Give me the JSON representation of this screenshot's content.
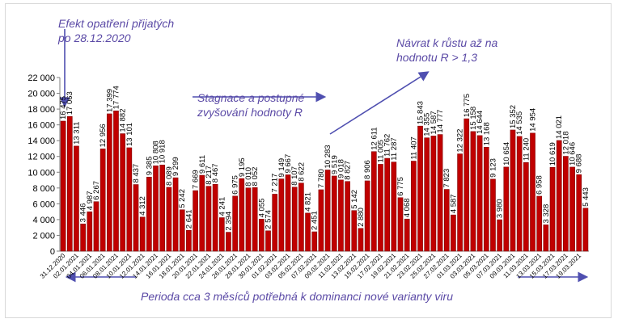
{
  "chart_data": {
    "type": "bar",
    "categories": [
      "31.12.2020",
      "01.01.2021",
      "02.01.2021",
      "03.01.2021",
      "04.01.2021",
      "05.01.2021",
      "06.01.2021",
      "07.01.2021",
      "08.01.2021",
      "09.01.2021",
      "10.01.2021",
      "11.01.2021",
      "12.01.2021",
      "13.01.2021",
      "14.01.2021",
      "15.01.2021",
      "16.01.2021",
      "17.01.2021",
      "18.01.2021",
      "19.01.2021",
      "20.01.2021",
      "21.01.2021",
      "22.01.2021",
      "23.01.2021",
      "24.01.2021",
      "25.01.2021",
      "26.01.2021",
      "27.01.2021",
      "28.01.2021",
      "29.01.2021",
      "30.01.2021",
      "31.01.2021",
      "01.02.2021",
      "02.02.2021",
      "03.02.2021",
      "04.02.2021",
      "05.02.2021",
      "06.02.2021",
      "07.02.2021",
      "08.02.2021",
      "09.02.2021",
      "10.02.2021",
      "11.02.2021",
      "12.02.2021",
      "13.02.2021",
      "14.02.2021",
      "15.02.2021",
      "16.02.2021",
      "17.02.2021",
      "18.02.2021",
      "19.02.2021",
      "20.02.2021",
      "21.02.2021",
      "22.02.2021",
      "23.02.2021",
      "24.02.2021",
      "25.02.2021",
      "26.02.2021",
      "27.02.2021",
      "28.02.2021",
      "01.03.2021",
      "02.03.2021",
      "03.03.2021",
      "04.03.2021",
      "05.03.2021",
      "06.03.2021",
      "07.03.2021",
      "08.03.2021",
      "09.03.2021",
      "10.03.2021",
      "11.03.2021",
      "12.03.2021",
      "13.03.2021",
      "14.03.2021",
      "15.03.2021",
      "16.03.2021",
      "17.03.2021",
      "18.03.2021",
      "19.03.2021",
      "20.03.2021"
    ],
    "xtick_labels": [
      "31.12.2020",
      "02.01.2021",
      "04.01.2021",
      "06.01.2021",
      "08.01.2021",
      "10.01.2021",
      "12.01.2021",
      "14.01.2021",
      "16.01.2021",
      "18.01.2021",
      "20.01.2021",
      "22.01.2021",
      "24.01.2021",
      "26.01.2021",
      "28.01.2021",
      "30.01.2021",
      "01.02.2021",
      "03.02.2021",
      "05.02.2021",
      "07.02.2021",
      "09.02.2021",
      "11.02.2021",
      "13.02.2021",
      "15.02.2021",
      "17.02.2021",
      "19.02.2021",
      "21.02.2021",
      "23.02.2021",
      "25.02.2021",
      "27.02.2021",
      "01.03.2021",
      "03.03.2021",
      "05.03.2021",
      "07.03.2021",
      "09.03.2021",
      "11.03.2021",
      "13.03.2021",
      "15.03.2021",
      "17.03.2021",
      "19.03.2021"
    ],
    "values": [
      16475,
      17063,
      13311,
      3446,
      4987,
      6267,
      12956,
      17399,
      17774,
      14882,
      13101,
      8437,
      4312,
      9385,
      10808,
      10918,
      8089,
      9299,
      5242,
      2641,
      7669,
      9611,
      8217,
      8467,
      4241,
      2394,
      6975,
      9195,
      8010,
      8052,
      4055,
      2574,
      7217,
      9149,
      9667,
      8107,
      8622,
      4821,
      2451,
      7780,
      10283,
      9519,
      9018,
      8827,
      5142,
      2880,
      8906,
      12611,
      11005,
      11762,
      11287,
      6775,
      4068,
      11407,
      15843,
      14355,
      14587,
      14777,
      7823,
      4587,
      12322,
      16775,
      15158,
      14644,
      13168,
      9123,
      3980,
      10654,
      15352,
      14535,
      11240,
      14954,
      6958,
      3328,
      10619,
      14021,
      12018,
      10646,
      9688,
      5443
    ],
    "value_labels": [
      "16 475",
      "17 063",
      "13 311",
      "3 446",
      "4 987",
      "6 267",
      "12 956",
      "17 399",
      "17 774",
      "14 882",
      "13 101",
      "8 437",
      "4 312",
      "9 385",
      "10 808",
      "10 918",
      "8 089",
      "9 299",
      "5 242",
      "2 641",
      "7 669",
      "9 611",
      "8 217",
      "8 467",
      "4 241",
      "2 394",
      "6 975",
      "9 195",
      "8 010",
      "8 052",
      "4 055",
      "2 574",
      "7 217",
      "9 149",
      "9 667",
      "8 107",
      "8 622",
      "4 821",
      "2 451",
      "7 780",
      "10 283",
      "9 519",
      "9 018",
      "8 827",
      "5 142",
      "2 880",
      "8 906",
      "12 611",
      "11 005",
      "11 762",
      "11 287",
      "6 775",
      "4 068",
      "11 407",
      "15 843",
      "14 355",
      "14 587",
      "14 777",
      "7 823",
      "4 587",
      "12 322",
      "16 775",
      "15 158",
      "14 644",
      "13 168",
      "9 123",
      "3 980",
      "10 654",
      "15 352",
      "14 535",
      "11 240",
      "14 954",
      "6 958",
      "3 328",
      "10 619",
      "14 021",
      "12 018",
      "10 646",
      "9 688",
      "5 443"
    ],
    "yticks": [
      "0",
      "2 000",
      "4 000",
      "6 000",
      "8 000",
      "10 000",
      "12 000",
      "14 000",
      "16 000",
      "18 000",
      "20 000",
      "22 000"
    ],
    "ylim": [
      0,
      22000
    ],
    "xlabel": "",
    "ylabel": "",
    "title": "",
    "grid": false,
    "bar_color": "#c00000",
    "bar_edge_color": "#7f0000"
  },
  "annotations": {
    "efekt": "Efekt opatření přijatých\npo 28.12.2020",
    "navrat": "Návrat k růstu až na\nhodnotu R > 1,3",
    "stagnace": "Stagnace a postupné\nzvyšování hodnoty R",
    "perioda": "Perioda cca 3 měsíců potřebná k dominanci nové varianty viru"
  },
  "annotation_color": "#5b4aa6"
}
